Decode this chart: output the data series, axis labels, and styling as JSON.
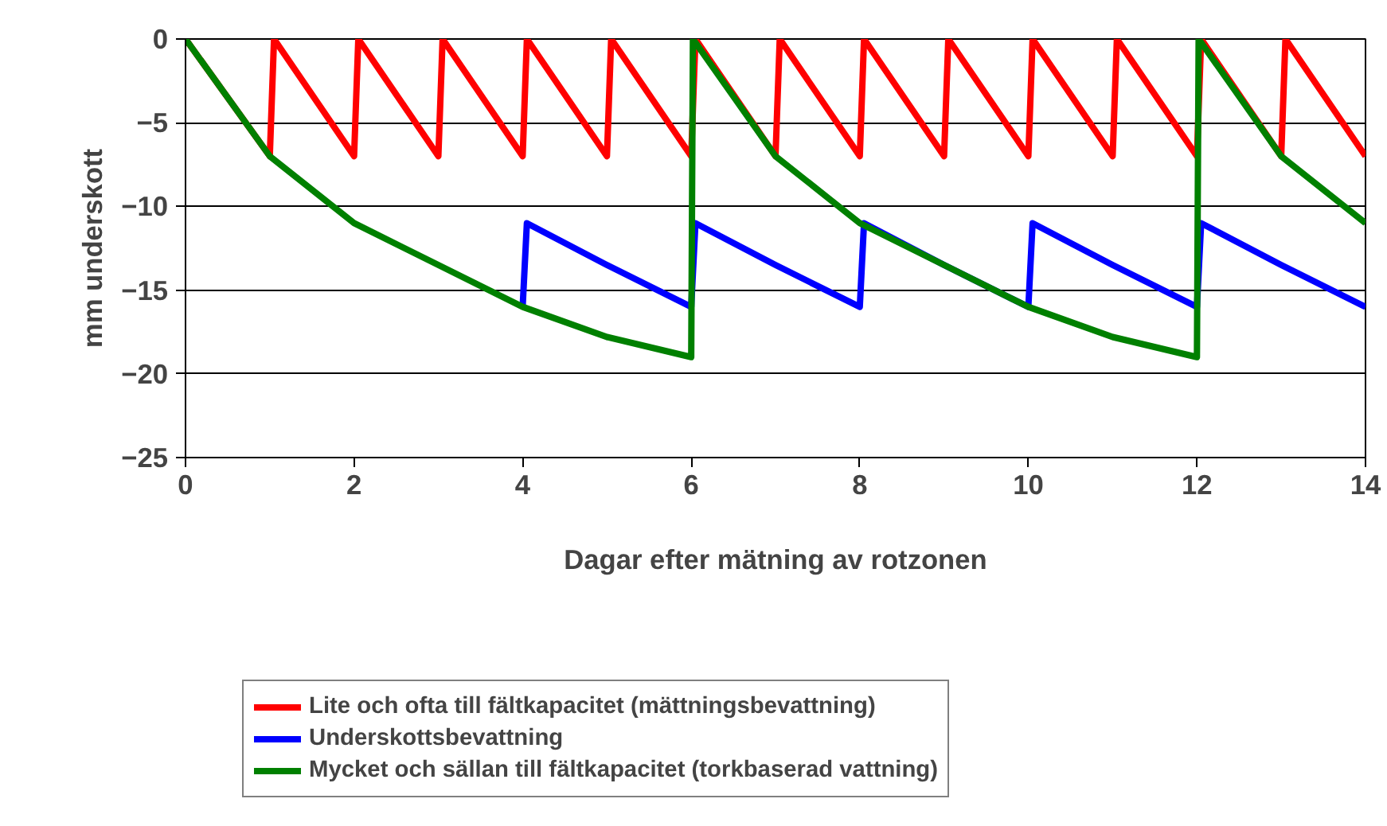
{
  "chart_data": {
    "type": "line",
    "xlabel": "Dagar efter mätning av rotzonen",
    "ylabel": "mm underskott",
    "xlim": [
      0,
      14
    ],
    "xticks": [
      0,
      2,
      4,
      6,
      8,
      10,
      12,
      14
    ],
    "ylim": [
      -25,
      0
    ],
    "yticks": [
      -25,
      -20,
      -15,
      -10,
      -5,
      0
    ],
    "grid": "y",
    "legend": "bottom",
    "marker": "none",
    "line_style": "solid",
    "series": [
      {
        "name": "Lite och ofta till fältkapacitet (mättningsbevattning)",
        "color": "#ff0000",
        "x": [
          0,
          1,
          1.05,
          2,
          2.05,
          3,
          3.05,
          4,
          4.05,
          5,
          5.05,
          6,
          6.05,
          7,
          7.05,
          8,
          8.05,
          9,
          9.05,
          10,
          10.05,
          11,
          11.05,
          12,
          12.05,
          13,
          13.05,
          14
        ],
        "values": [
          0,
          -7,
          0,
          -7,
          0,
          -7,
          0,
          -7,
          0,
          -7,
          0,
          -7,
          0,
          -7,
          0,
          -7,
          0,
          -7,
          0,
          -7,
          0,
          -7,
          0,
          -7,
          0,
          -7,
          0,
          -7
        ]
      },
      {
        "name": "Underskottsbevattning",
        "color": "#0000ff",
        "x": [
          4,
          4.05,
          5,
          6,
          6.05,
          7,
          8,
          8.05,
          9,
          10,
          10.05,
          11,
          12,
          12.05,
          13,
          14
        ],
        "values": [
          -16,
          -11,
          -13.5,
          -16,
          -11,
          -13.5,
          -16,
          -11,
          -13.5,
          -16,
          -11,
          -13.5,
          -16,
          -11,
          -13.5,
          -16
        ]
      },
      {
        "name": "Mycket och sällan till fältkapacitet (torkbaserad vattning)",
        "color": "#008000",
        "x": [
          0,
          1,
          2,
          3,
          4,
          5,
          6,
          6.02,
          7,
          8,
          9,
          10,
          11,
          12,
          12.02,
          13,
          14
        ],
        "values": [
          0,
          -7,
          -11,
          -13.5,
          -16,
          -17.8,
          -19,
          0,
          -7,
          -11,
          -13.5,
          -16,
          -17.8,
          -19,
          0,
          -7,
          -11
        ]
      }
    ]
  }
}
